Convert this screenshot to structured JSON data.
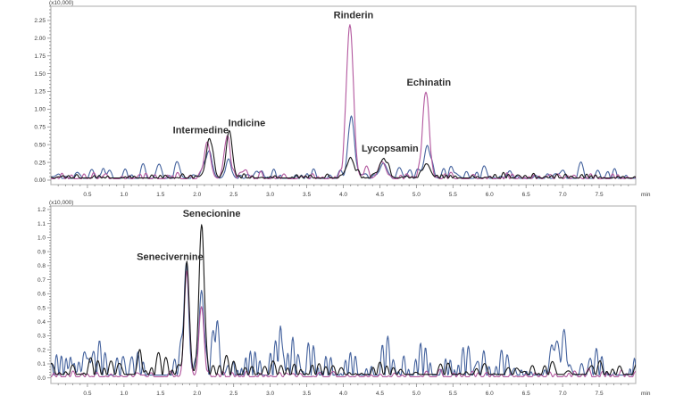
{
  "figure": {
    "background": "#ffffff",
    "axis_color": "#b9b9b9",
    "tick_color": "#8a8a8a"
  },
  "chart_data": [
    {
      "type": "line",
      "panel": "top",
      "title": "",
      "xlabel": "min",
      "ylabel": "(x10,000)",
      "x_range": [
        0,
        8.0
      ],
      "y_range": [
        -0.063,
        2.45
      ],
      "x_ticks": [
        0.5,
        1.0,
        1.5,
        2.0,
        2.5,
        3.0,
        3.5,
        4.0,
        4.5,
        5.0,
        5.5,
        6.0,
        6.5,
        7.0,
        7.5
      ],
      "x_tick_labels": [
        "0.5",
        "1.0",
        "1.5",
        "2.0",
        "2.5",
        "3.0",
        "3.5",
        "4.0",
        "4.5",
        "5.0",
        "5.5",
        "6.0",
        "6.5",
        "7.0",
        "7.5"
      ],
      "x_minor_step": 0.1,
      "y_ticks": [
        0.0,
        0.25,
        0.5,
        0.75,
        1.0,
        1.25,
        1.5,
        1.75,
        2.0,
        2.25
      ],
      "y_tick_labels": [
        "0.00",
        "0.25",
        "0.50",
        "0.75",
        "1.00",
        "1.25",
        "1.50",
        "1.75",
        "2.00",
        "2.25"
      ],
      "y_minor_step": 0.05,
      "grid": false,
      "legend": null,
      "series": [
        {
          "name": "trace-blue",
          "color": "#45639e",
          "baseline": 0.025,
          "noise_amp": 0.11,
          "seed": 101,
          "peaks": [
            {
              "x": 2.16,
              "h": 0.38,
              "w": 0.045
            },
            {
              "x": 2.43,
              "h": 0.22,
              "w": 0.04
            },
            {
              "x": 4.11,
              "h": 0.88,
              "w": 0.042
            },
            {
              "x": 4.52,
              "h": 0.12,
              "w": 0.05
            },
            {
              "x": 5.16,
              "h": 0.4,
              "w": 0.045
            }
          ],
          "minor_peaks": [
            {
              "x": 0.72,
              "h": 0.1,
              "w": 0.04
            },
            {
              "x": 2.86,
              "h": 0.09,
              "w": 0.04
            },
            {
              "x": 5.52,
              "h": 0.08,
              "w": 0.05
            }
          ]
        },
        {
          "name": "trace-pink",
          "color": "#b2579e",
          "baseline": 0.02,
          "noise_amp": 0.055,
          "seed": 103,
          "peaks": [
            {
              "x": 2.14,
              "h": 0.48,
              "w": 0.045
            },
            {
              "x": 2.41,
              "h": 0.58,
              "w": 0.042
            },
            {
              "x": 4.09,
              "h": 2.17,
              "w": 0.048
            },
            {
              "x": 4.53,
              "h": 0.24,
              "w": 0.05
            },
            {
              "x": 5.13,
              "h": 1.22,
              "w": 0.045
            }
          ],
          "minor_peaks": [
            {
              "x": 2.63,
              "h": 0.1,
              "w": 0.04
            },
            {
              "x": 4.3,
              "h": 0.08,
              "w": 0.04
            }
          ]
        },
        {
          "name": "trace-black",
          "color": "#191919",
          "baseline": 0.03,
          "noise_amp": 0.045,
          "seed": 102,
          "peaks": [
            {
              "x": 2.17,
              "h": 0.55,
              "w": 0.045
            },
            {
              "x": 2.44,
              "h": 0.64,
              "w": 0.042
            },
            {
              "x": 4.1,
              "h": 0.28,
              "w": 0.05
            },
            {
              "x": 4.55,
              "h": 0.27,
              "w": 0.055
            },
            {
              "x": 5.14,
              "h": 0.2,
              "w": 0.05
            }
          ],
          "minor_peaks": []
        }
      ],
      "annotations": [
        {
          "label": "Intermedine",
          "x": 2.05,
          "y": 0.66
        },
        {
          "label": "Indicine",
          "x": 2.68,
          "y": 0.76
        },
        {
          "label": "Rinderin",
          "x": 4.14,
          "y": 2.28
        },
        {
          "label": "Lycopsamin",
          "x": 4.64,
          "y": 0.4
        },
        {
          "label": "Echinatin",
          "x": 5.17,
          "y": 1.33
        }
      ]
    },
    {
      "type": "line",
      "panel": "bottom",
      "title": "",
      "xlabel": "min",
      "ylabel": "(x10,000)",
      "x_range": [
        0,
        8.0
      ],
      "y_range": [
        -0.04,
        1.225
      ],
      "x_ticks": [
        0.5,
        1.0,
        1.5,
        2.0,
        2.5,
        3.0,
        3.5,
        4.0,
        4.5,
        5.0,
        5.5,
        6.0,
        6.5,
        7.0,
        7.5
      ],
      "x_tick_labels": [
        "0.5",
        "1.0",
        "1.5",
        "2.0",
        "2.5",
        "3.0",
        "3.5",
        "4.0",
        "4.5",
        "5.0",
        "5.5",
        "6.0",
        "6.5",
        "7.0",
        "7.5"
      ],
      "x_minor_step": 0.1,
      "y_ticks": [
        0.0,
        0.1,
        0.2,
        0.3,
        0.4,
        0.5,
        0.6,
        0.7,
        0.8,
        0.9,
        1.0,
        1.1,
        1.2
      ],
      "y_tick_labels": [
        "0.0",
        "0.1",
        "0.2",
        "0.3",
        "0.4",
        "0.5",
        "0.6",
        "0.7",
        "0.8",
        "0.9",
        "1.0",
        "1.1",
        "1.2"
      ],
      "y_minor_step": 0.02,
      "grid": false,
      "legend": null,
      "series": [
        {
          "name": "trace-blue",
          "color": "#45639e",
          "baseline": 0.02,
          "noise_amp": 0.13,
          "seed": 201,
          "peaks": [
            {
              "x": 1.85,
              "h": 0.68,
              "w": 0.035
            },
            {
              "x": 2.06,
              "h": 0.6,
              "w": 0.033
            }
          ],
          "minor_peaks": [
            {
              "x": 2.26,
              "h": 0.25,
              "w": 0.03
            },
            {
              "x": 3.15,
              "h": 0.24,
              "w": 0.03
            },
            {
              "x": 0.5,
              "h": 0.12,
              "w": 0.05
            },
            {
              "x": 6.88,
              "h": 0.18,
              "w": 0.04
            },
            {
              "x": 7.02,
              "h": 0.17,
              "w": 0.04
            },
            {
              "x": 0.28,
              "h": 0.08,
              "w": 0.04
            }
          ]
        },
        {
          "name": "trace-pink",
          "color": "#b2579e",
          "baseline": 0.008,
          "noise_amp": 0.028,
          "seed": 203,
          "peaks": [
            {
              "x": 1.86,
              "h": 0.74,
              "w": 0.033
            },
            {
              "x": 2.06,
              "h": 0.5,
              "w": 0.033
            }
          ],
          "minor_peaks": []
        },
        {
          "name": "trace-black",
          "color": "#191919",
          "baseline": 0.025,
          "noise_amp": 0.062,
          "seed": 202,
          "peaks": [
            {
              "x": 1.86,
              "h": 0.76,
              "w": 0.034
            },
            {
              "x": 2.06,
              "h": 1.06,
              "w": 0.034
            }
          ],
          "minor_peaks": [
            {
              "x": 1.22,
              "h": 0.12,
              "w": 0.025
            }
          ]
        }
      ],
      "annotations": [
        {
          "label": "Senecivernine",
          "x": 1.63,
          "y": 0.84
        },
        {
          "label": "Senecionine",
          "x": 2.2,
          "y": 1.15
        }
      ]
    }
  ]
}
